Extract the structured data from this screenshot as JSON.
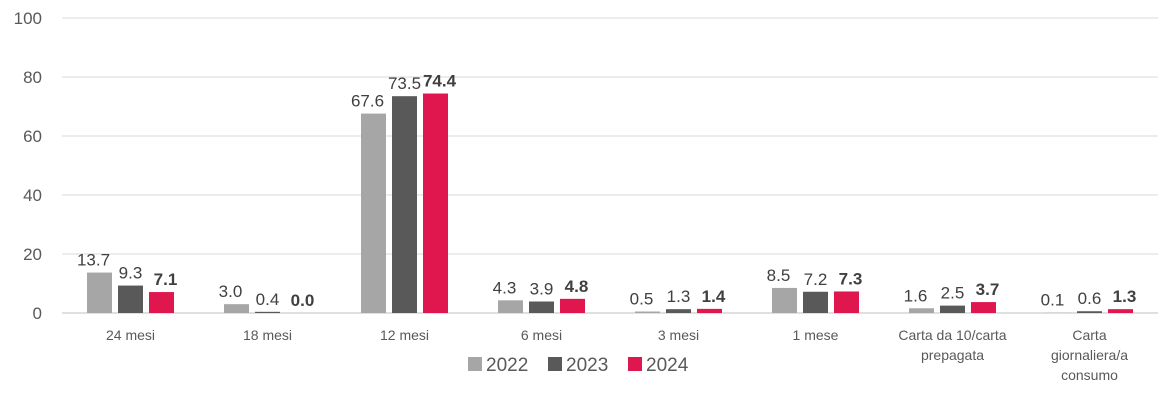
{
  "chart_data": {
    "type": "bar",
    "categories": [
      [
        "24 mesi"
      ],
      [
        "18 mesi"
      ],
      [
        "12 mesi"
      ],
      [
        "6 mesi"
      ],
      [
        "3 mesi"
      ],
      [
        "1 mese"
      ],
      [
        "Carta da 10/carta",
        "prepagata"
      ],
      [
        "Carta",
        "giornaliera/a",
        "consumo"
      ]
    ],
    "series": [
      {
        "name": "2022",
        "color": "#a6a6a6",
        "bold_labels": false,
        "values": [
          13.7,
          3.0,
          67.6,
          4.3,
          0.5,
          8.5,
          1.6,
          0.1
        ],
        "labels": [
          "13.7",
          "3.0",
          "67.6",
          "4.3",
          "0.5",
          "8.5",
          "1.6",
          "0.1"
        ]
      },
      {
        "name": "2023",
        "color": "#595959",
        "bold_labels": false,
        "values": [
          9.3,
          0.4,
          73.5,
          3.9,
          1.3,
          7.2,
          2.5,
          0.6
        ],
        "labels": [
          "9.3",
          "0.4",
          "73.5",
          "3.9",
          "1.3",
          "7.2",
          "2.5",
          "0.6"
        ]
      },
      {
        "name": "2024",
        "color": "#e0174f",
        "bold_labels": true,
        "values": [
          7.1,
          0.0,
          74.4,
          4.8,
          1.4,
          7.3,
          3.7,
          1.3
        ],
        "labels": [
          "7.1",
          "0.0",
          "74.4",
          "4.8",
          "1.4",
          "7.3",
          "3.7",
          "1.3"
        ]
      }
    ],
    "yticks": [
      "0",
      "20",
      "40",
      "60",
      "80",
      "100"
    ],
    "ylim": [
      0,
      100
    ],
    "grid": true,
    "gridline_color": "#d9d9d9",
    "legend_position": "bottom"
  }
}
